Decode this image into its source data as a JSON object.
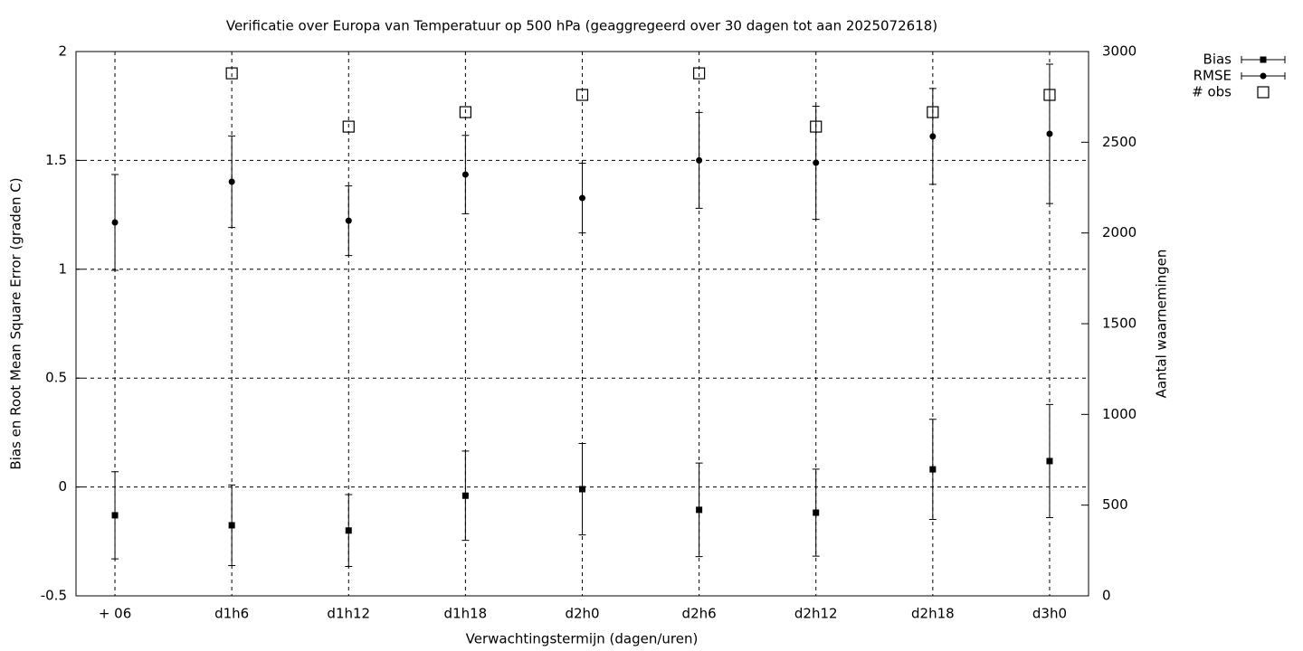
{
  "chart_data": {
    "type": "errorbar",
    "title": "Verificatie over Europa van Temperatuur op 500 hPa (geaggregeerd over 30 dagen tot aan 2025072618)",
    "x_label": "Verwachtingstermijn (dagen/uren)",
    "y_label": "Bias en Root Mean Square Error (graden C)",
    "y2_label": "Aantal waarnemingen",
    "categories": [
      "+ 06",
      "d1h6",
      "d1h12",
      "d1h18",
      "d2h0",
      "d2h6",
      "d2h12",
      "d2h18",
      "d3h0"
    ],
    "ylim": [
      -0.5,
      2
    ],
    "yticks": [
      -0.5,
      0,
      0.5,
      1,
      1.5,
      2
    ],
    "y2lim": [
      0,
      3000
    ],
    "y2ticks": [
      0,
      500,
      1000,
      1500,
      2000,
      2500,
      3000
    ],
    "grid": true,
    "legend": "top-right",
    "series": [
      {
        "name": "Bias",
        "color": "#000000",
        "marker": "square",
        "values": [
          -0.13,
          -0.176,
          -0.2,
          -0.04,
          -0.01,
          -0.105,
          -0.118,
          0.081,
          0.119
        ],
        "errors": [
          0.2,
          0.185,
          0.165,
          0.205,
          0.21,
          0.215,
          0.2,
          0.23,
          0.26
        ]
      },
      {
        "name": "RMSE",
        "color": "#000000",
        "marker": "circle",
        "values": [
          1.215,
          1.402,
          1.223,
          1.435,
          1.327,
          1.5,
          1.489,
          1.61,
          1.622
        ],
        "errors": [
          0.22,
          0.21,
          0.16,
          0.18,
          0.16,
          0.22,
          0.26,
          0.22,
          0.32
        ]
      },
      {
        "name": "# obs",
        "color": "#000000",
        "marker": "open-square",
        "axis": "y2",
        "values": [
          null,
          2880,
          2586,
          2666,
          2761,
          2880,
          2586,
          2666,
          2761
        ]
      }
    ]
  }
}
